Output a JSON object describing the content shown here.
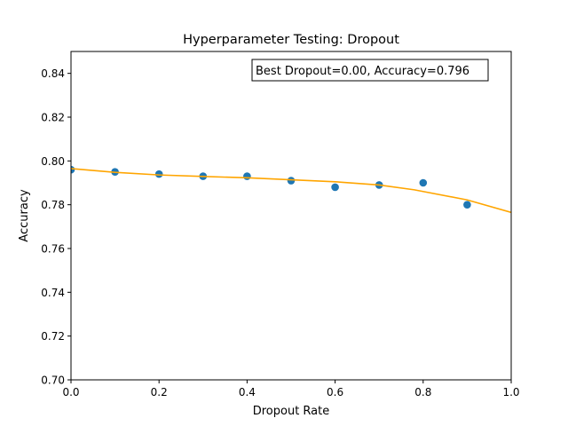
{
  "chart_data": {
    "type": "scatter",
    "title": "Hyperparameter Testing: Dropout",
    "xlabel": "Dropout Rate",
    "ylabel": "Accuracy",
    "xlim": [
      0.0,
      1.0
    ],
    "ylim": [
      0.7,
      0.85
    ],
    "xticks": [
      "0.0",
      "0.2",
      "0.4",
      "0.6",
      "0.8",
      "1.0"
    ],
    "yticks": [
      "0.70",
      "0.72",
      "0.74",
      "0.76",
      "0.78",
      "0.80",
      "0.82",
      "0.84"
    ],
    "grid": false,
    "annotation": "Best Dropout=0.00, Accuracy=0.796",
    "series": [
      {
        "kind": "scatter",
        "color": "#1f77b4",
        "x": [
          0.0,
          0.1,
          0.2,
          0.3,
          0.4,
          0.5,
          0.6,
          0.7,
          0.8,
          0.9
        ],
        "y": [
          0.796,
          0.795,
          0.794,
          0.793,
          0.793,
          0.791,
          0.788,
          0.789,
          0.79,
          0.78
        ]
      },
      {
        "kind": "line",
        "color": "#ffa500",
        "x": [
          0.0,
          0.1,
          0.2,
          0.3,
          0.4,
          0.5,
          0.6,
          0.7,
          0.78,
          0.9,
          1.0
        ],
        "y": [
          0.7965,
          0.7948,
          0.7936,
          0.7929,
          0.7923,
          0.7914,
          0.7905,
          0.789,
          0.7868,
          0.7822,
          0.7765
        ]
      }
    ]
  }
}
